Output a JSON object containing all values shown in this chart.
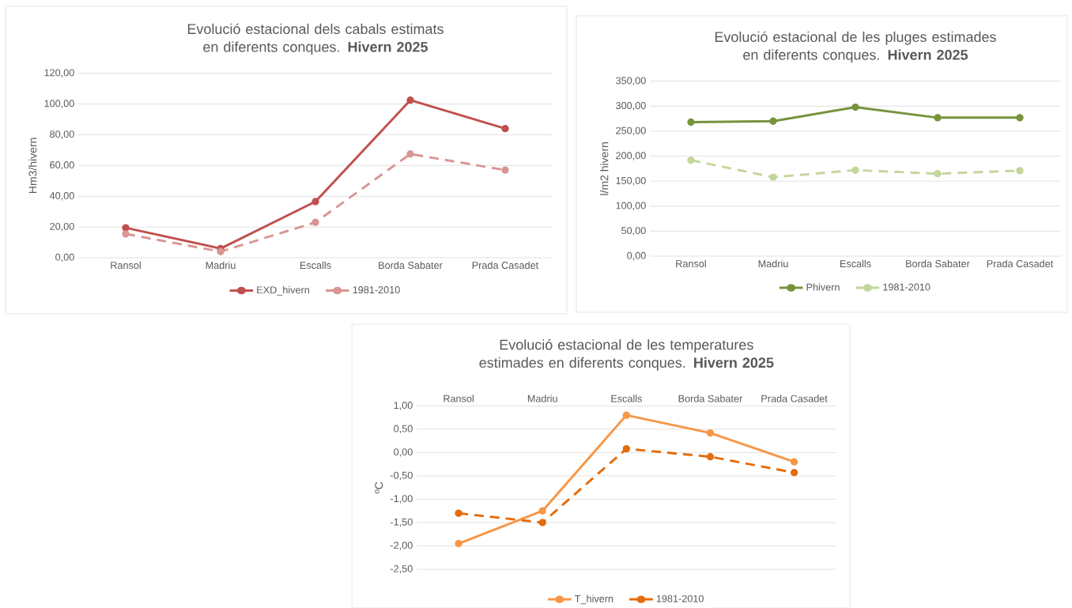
{
  "chart_data": [
    {
      "type": "line",
      "title": "Evolució estacional dels cabals estimats en diferents conques. **Hivern 2025**",
      "ylabel": "Hm3/hivern",
      "categories": [
        "Ransol",
        "Madriu",
        "Escalls",
        "Borda Sabater",
        "Prada Casadet"
      ],
      "series": [
        {
          "name": "EXD_hivern",
          "color": "#c0504d",
          "line_style": "solid",
          "values": [
            19.5,
            6,
            36.5,
            102.5,
            84
          ]
        },
        {
          "name": "1981-2010",
          "color": "#d99694",
          "line_style": "dashed",
          "values": [
            15.5,
            4,
            23,
            67.5,
            57
          ]
        }
      ],
      "ylim": [
        0,
        120
      ],
      "yticks": [
        {
          "value": 0,
          "label": "0,00"
        },
        {
          "value": 20,
          "label": "20,00"
        },
        {
          "value": 40,
          "label": "40,00"
        },
        {
          "value": 60,
          "label": "60,00"
        },
        {
          "value": 80,
          "label": "80,00"
        },
        {
          "value": 100,
          "label": "100,00"
        },
        {
          "value": 120,
          "label": "120,00"
        }
      ],
      "grid": "y",
      "legend": "bottom",
      "marker": "circle"
    },
    {
      "type": "line",
      "title": "Evolució estacional de les pluges estimades en diferents conques. **Hivern 2025**",
      "ylabel": "l/m2 hivern",
      "categories": [
        "Ransol",
        "Madriu",
        "Escalls",
        "Borda Sabater",
        "Prada Casadet"
      ],
      "series": [
        {
          "name": "Phivern",
          "color": "#77933c",
          "line_style": "solid",
          "values": [
            268,
            270,
            298,
            277,
            277
          ]
        },
        {
          "name": "1981-2010",
          "color": "#c3d69b",
          "line_style": "dashed",
          "values": [
            192,
            158,
            172,
            165,
            171
          ]
        }
      ],
      "ylim": [
        0,
        350
      ],
      "yticks": [
        {
          "value": 0,
          "label": "0,00"
        },
        {
          "value": 50,
          "label": "50,00"
        },
        {
          "value": 100,
          "label": "100,00"
        },
        {
          "value": 150,
          "label": "150,00"
        },
        {
          "value": 200,
          "label": "200,00"
        },
        {
          "value": 250,
          "label": "250,00"
        },
        {
          "value": 300,
          "label": "300,00"
        },
        {
          "value": 350,
          "label": "350,00"
        }
      ],
      "grid": "y",
      "legend": "bottom",
      "marker": "circle"
    },
    {
      "type": "line",
      "title": "Evolució estacional de les temperatures estimades en diferents conques. **Hivern 2025**",
      "ylabel": "ºC",
      "categories": [
        "Ransol",
        "Madriu",
        "Escalls",
        "Borda Sabater",
        "Prada Casadet"
      ],
      "series": [
        {
          "name": "T_hivern",
          "color": "#f79646",
          "line_style": "solid",
          "values": [
            -1.95,
            -1.25,
            0.8,
            0.42,
            -0.2
          ]
        },
        {
          "name": "1981-2010",
          "color": "#e46c0a",
          "line_style": "dashed",
          "values": [
            -1.3,
            -1.5,
            0.08,
            -0.09,
            -0.43
          ]
        }
      ],
      "ylim": [
        -2.5,
        1
      ],
      "yticks": [
        {
          "value": -2.5,
          "label": "-2,50"
        },
        {
          "value": -2,
          "label": "-2,00"
        },
        {
          "value": -1.5,
          "label": "-1,50"
        },
        {
          "value": -1,
          "label": "-1,00"
        },
        {
          "value": -0.5,
          "label": "-0,50"
        },
        {
          "value": 0,
          "label": "0,00"
        },
        {
          "value": 0.5,
          "label": "0,50"
        },
        {
          "value": 1,
          "label": "1,00"
        }
      ],
      "grid": "y",
      "legend": "bottom",
      "marker": "circle"
    }
  ]
}
